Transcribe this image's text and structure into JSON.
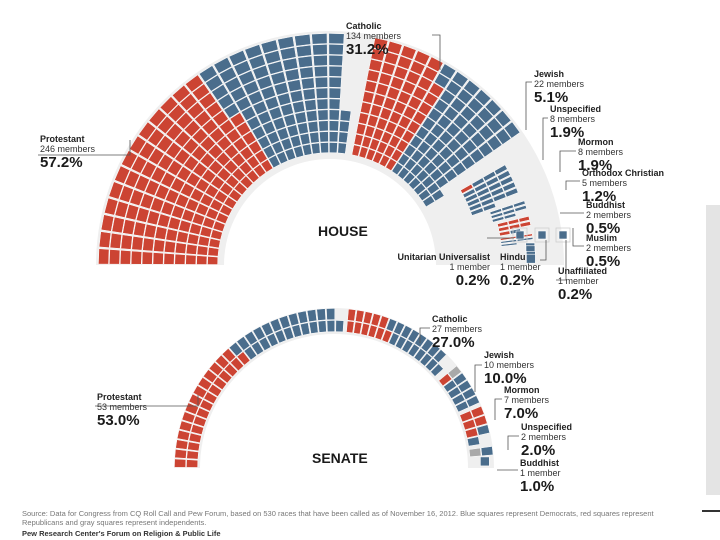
{
  "colors": {
    "democrat": "#4a6d8c",
    "republican": "#cc4433",
    "independent": "#a9a9a9",
    "background": "#ffffff"
  },
  "chart_data": [
    {
      "type": "parliament",
      "title": "HOUSE",
      "series_legend": [
        "Democrats",
        "Republicans",
        "Independents"
      ],
      "groups": [
        {
          "name": "Protestant",
          "count_label": "246 members",
          "pct": "57.2%",
          "members": 246,
          "democrat": 97,
          "republican": 149,
          "independent": 0
        },
        {
          "name": "Catholic",
          "count_label": "134 members",
          "pct": "31.2%",
          "members": 134,
          "democrat": 70,
          "republican": 64,
          "independent": 0
        },
        {
          "name": "Jewish",
          "count_label": "22 members",
          "pct": "5.1%",
          "members": 22,
          "democrat": 21,
          "republican": 1,
          "independent": 0
        },
        {
          "name": "Unspecified",
          "count_label": "8 members",
          "pct": "1.9%",
          "members": 8,
          "democrat": 8,
          "republican": 0,
          "independent": 0
        },
        {
          "name": "Mormon",
          "count_label": "8 members",
          "pct": "1.9%",
          "members": 8,
          "democrat": 1,
          "republican": 7,
          "independent": 0
        },
        {
          "name": "Orthodox Christian",
          "count_label": "5 members",
          "pct": "1.2%",
          "members": 5,
          "democrat": 3,
          "republican": 2,
          "independent": 0
        },
        {
          "name": "Buddhist",
          "count_label": "2 members",
          "pct": "0.5%",
          "members": 2,
          "democrat": 2,
          "republican": 0,
          "independent": 0
        },
        {
          "name": "Muslim",
          "count_label": "2 members",
          "pct": "0.5%",
          "members": 2,
          "democrat": 2,
          "republican": 0,
          "independent": 0
        },
        {
          "name": "Unitarian Universalist",
          "count_label": "1 member",
          "pct": "0.2%",
          "members": 1,
          "democrat": 1,
          "republican": 0,
          "independent": 0
        },
        {
          "name": "Hindu",
          "count_label": "1 member",
          "pct": "0.2%",
          "members": 1,
          "democrat": 1,
          "republican": 0,
          "independent": 0
        },
        {
          "name": "Unaffiliated",
          "count_label": "1 member",
          "pct": "0.2%",
          "members": 1,
          "democrat": 1,
          "republican": 0,
          "independent": 0
        }
      ]
    },
    {
      "type": "parliament",
      "title": "SENATE",
      "series_legend": [
        "Democrats",
        "Republicans",
        "Independents"
      ],
      "groups": [
        {
          "name": "Protestant",
          "count_label": "53 members",
          "pct": "53.0%",
          "members": 53,
          "democrat": 24,
          "republican": 29,
          "independent": 0
        },
        {
          "name": "Catholic",
          "count_label": "27 members",
          "pct": "27.0%",
          "members": 27,
          "democrat": 16,
          "republican": 11,
          "independent": 0
        },
        {
          "name": "Jewish",
          "count_label": "10 members",
          "pct": "10.0%",
          "members": 10,
          "democrat": 8,
          "republican": 1,
          "independent": 1
        },
        {
          "name": "Mormon",
          "count_label": "7 members",
          "pct": "7.0%",
          "members": 7,
          "democrat": 2,
          "republican": 5,
          "independent": 0
        },
        {
          "name": "Unspecified",
          "count_label": "2 members",
          "pct": "2.0%",
          "members": 2,
          "democrat": 1,
          "republican": 0,
          "independent": 1
        },
        {
          "name": "Buddhist",
          "count_label": "1 member",
          "pct": "1.0%",
          "members": 1,
          "democrat": 1,
          "republican": 0,
          "independent": 0
        }
      ]
    }
  ],
  "footer": {
    "source": "Source: Data for Congress from CQ Roll Call and Pew Forum, based on 530 races that have been called as of November 16, 2012. Blue squares represent Democrats, red squares represent Republicans and gray squares represent independents.",
    "credit": "Pew Research Center's Forum on Religion & Public Life"
  }
}
